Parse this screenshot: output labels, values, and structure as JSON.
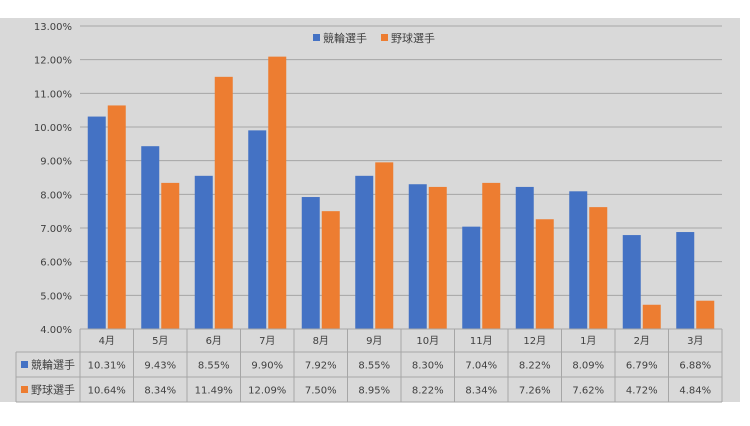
{
  "chart_data": {
    "type": "bar",
    "categories": [
      "4月",
      "5月",
      "6月",
      "7月",
      "8月",
      "9月",
      "10月",
      "11月",
      "12月",
      "1月",
      "2月",
      "3月"
    ],
    "series": [
      {
        "name": "競輪選手",
        "color": "#4472C4",
        "values": [
          10.31,
          9.43,
          8.55,
          9.9,
          7.92,
          8.55,
          8.3,
          7.04,
          8.22,
          8.09,
          6.79,
          6.88
        ],
        "labels": [
          "10.31%",
          "9.43%",
          "8.55%",
          "9.90%",
          "7.92%",
          "8.55%",
          "8.30%",
          "7.04%",
          "8.22%",
          "8.09%",
          "6.79%",
          "6.88%"
        ]
      },
      {
        "name": "野球選手",
        "color": "#ED7D31",
        "values": [
          10.64,
          8.34,
          11.49,
          12.09,
          7.5,
          8.95,
          8.22,
          8.34,
          7.26,
          7.62,
          4.72,
          4.84
        ],
        "labels": [
          "10.64%",
          "8.34%",
          "11.49%",
          "12.09%",
          "7.50%",
          "8.95%",
          "8.22%",
          "8.34%",
          "7.26%",
          "7.62%",
          "4.72%",
          "4.84%"
        ]
      }
    ],
    "ylim": [
      4,
      13
    ],
    "yticks": [
      "4.00%",
      "5.00%",
      "6.00%",
      "7.00%",
      "8.00%",
      "9.00%",
      "10.00%",
      "11.00%",
      "12.00%",
      "13.00%"
    ],
    "grid": true,
    "legend": "top-center",
    "data_table": true,
    "title": "",
    "xlabel": "",
    "ylabel": ""
  },
  "colors": {
    "plot_background": "#D9D9D9",
    "gridline": "#A6A6A6",
    "text": "#404040"
  }
}
